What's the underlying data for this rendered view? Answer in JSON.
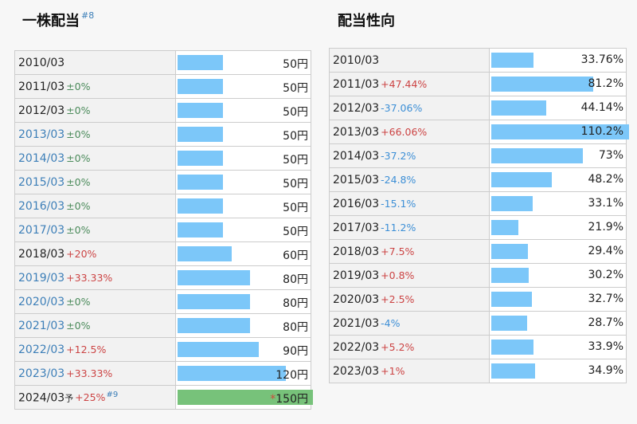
{
  "headings": {
    "dividend": "一株配当",
    "dividend_note": "#8",
    "payout": "配当性向"
  },
  "dividend_rows": [
    {
      "year": "2010/03",
      "link": false,
      "change": "",
      "dir": "",
      "value": "50円",
      "fill": 0.333
    },
    {
      "year": "2011/03",
      "link": false,
      "change": "±0%",
      "dir": "zero",
      "value": "50円",
      "fill": 0.333
    },
    {
      "year": "2012/03",
      "link": false,
      "change": "±0%",
      "dir": "zero",
      "value": "50円",
      "fill": 0.333
    },
    {
      "year": "2013/03",
      "link": true,
      "change": "±0%",
      "dir": "zero",
      "value": "50円",
      "fill": 0.333
    },
    {
      "year": "2014/03",
      "link": true,
      "change": "±0%",
      "dir": "zero",
      "value": "50円",
      "fill": 0.333
    },
    {
      "year": "2015/03",
      "link": true,
      "change": "±0%",
      "dir": "zero",
      "value": "50円",
      "fill": 0.333
    },
    {
      "year": "2016/03",
      "link": true,
      "change": "±0%",
      "dir": "zero",
      "value": "50円",
      "fill": 0.333
    },
    {
      "year": "2017/03",
      "link": true,
      "change": "±0%",
      "dir": "zero",
      "value": "50円",
      "fill": 0.333
    },
    {
      "year": "2018/03",
      "link": false,
      "change": "+20%",
      "dir": "up",
      "value": "60円",
      "fill": 0.4
    },
    {
      "year": "2019/03",
      "link": true,
      "change": "+33.33%",
      "dir": "up",
      "value": "80円",
      "fill": 0.533
    },
    {
      "year": "2020/03",
      "link": true,
      "change": "±0%",
      "dir": "zero",
      "value": "80円",
      "fill": 0.533
    },
    {
      "year": "2021/03",
      "link": true,
      "change": "±0%",
      "dir": "zero",
      "value": "80円",
      "fill": 0.533
    },
    {
      "year": "2022/03",
      "link": true,
      "change": "+12.5%",
      "dir": "up",
      "value": "90円",
      "fill": 0.6
    },
    {
      "year": "2023/03",
      "link": true,
      "change": "+33.33%",
      "dir": "up",
      "value": "120円",
      "fill": 0.8
    },
    {
      "year": "2024/03",
      "link": false,
      "forecast_mark": "予",
      "change": "+25%",
      "dir": "up",
      "note": "#9",
      "star": "*",
      "value": "150円",
      "fill": 1.0,
      "forecast": true
    }
  ],
  "payout_rows": [
    {
      "year": "2010/03",
      "change": "",
      "dir": "",
      "value": "33.76%",
      "fill": 0.306
    },
    {
      "year": "2011/03",
      "change": "+47.44%",
      "dir": "up",
      "value": "81.2%",
      "fill": 0.737
    },
    {
      "year": "2012/03",
      "change": "-37.06%",
      "dir": "down",
      "value": "44.14%",
      "fill": 0.4
    },
    {
      "year": "2013/03",
      "change": "+66.06%",
      "dir": "up",
      "value": "110.2%",
      "fill": 1.0
    },
    {
      "year": "2014/03",
      "change": "-37.2%",
      "dir": "down",
      "value": "73%",
      "fill": 0.662
    },
    {
      "year": "2015/03",
      "change": "-24.8%",
      "dir": "down",
      "value": "48.2%",
      "fill": 0.437
    },
    {
      "year": "2016/03",
      "change": "-15.1%",
      "dir": "down",
      "value": "33.1%",
      "fill": 0.3
    },
    {
      "year": "2017/03",
      "change": "-11.2%",
      "dir": "down",
      "value": "21.9%",
      "fill": 0.199
    },
    {
      "year": "2018/03",
      "change": "+7.5%",
      "dir": "up",
      "value": "29.4%",
      "fill": 0.267
    },
    {
      "year": "2019/03",
      "change": "+0.8%",
      "dir": "up",
      "value": "30.2%",
      "fill": 0.274
    },
    {
      "year": "2020/03",
      "change": "+2.5%",
      "dir": "up",
      "value": "32.7%",
      "fill": 0.297
    },
    {
      "year": "2021/03",
      "change": "-4%",
      "dir": "down",
      "value": "28.7%",
      "fill": 0.26
    },
    {
      "year": "2022/03",
      "change": "+5.2%",
      "dir": "up",
      "value": "33.9%",
      "fill": 0.308
    },
    {
      "year": "2023/03",
      "change": "+1%",
      "dir": "up",
      "value": "34.9%",
      "fill": 0.317
    }
  ],
  "colors": {
    "bar": "#7cc7f9",
    "forecast_bar": "#77c27a",
    "up": "#cc4444",
    "down": "#3d8fd6",
    "zero": "#4a8a5a",
    "link": "#3d7fb8"
  }
}
